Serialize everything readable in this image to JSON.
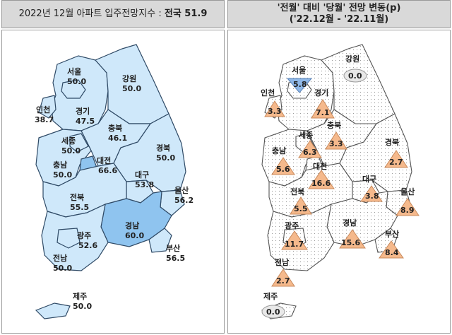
{
  "header_left": {
    "prefix": "2022년 12월 아파트 입주전망지수 :",
    "national": "전국 51.9"
  },
  "header_right": {
    "line1": "'전월' 대비 '당월' 전망 변동(p)",
    "line2": "('22.12월 - '22.11월)"
  },
  "colors": {
    "region_fill": "#cfe8fa",
    "region_highlight": "#8fc4ef",
    "region_stroke": "#2f4a66",
    "up_triangle": "#f5b98c",
    "down_triangle": "#8fb8e8",
    "zero_fill": "#e8e8e8"
  },
  "left_regions": [
    {
      "name": "서울",
      "value": "50.0"
    },
    {
      "name": "인천",
      "value": "38.7"
    },
    {
      "name": "경기",
      "value": "47.5"
    },
    {
      "name": "강원",
      "value": "50.0"
    },
    {
      "name": "세종",
      "value": "50.0"
    },
    {
      "name": "충북",
      "value": "46.1"
    },
    {
      "name": "충남",
      "value": "50.0"
    },
    {
      "name": "대전",
      "value": "66.6"
    },
    {
      "name": "경북",
      "value": "50.0"
    },
    {
      "name": "대구",
      "value": "53.8"
    },
    {
      "name": "전북",
      "value": "55.5"
    },
    {
      "name": "울산",
      "value": "56.2"
    },
    {
      "name": "경남",
      "value": "60.0"
    },
    {
      "name": "광주",
      "value": "52.6"
    },
    {
      "name": "부산",
      "value": "56.5"
    },
    {
      "name": "전남",
      "value": "50.0"
    },
    {
      "name": "제주",
      "value": "50.0"
    }
  ],
  "right_regions": [
    {
      "name": "강원",
      "value": "0.0",
      "trend": "zero"
    },
    {
      "name": "서울",
      "value": "5.8",
      "trend": "down"
    },
    {
      "name": "인천",
      "value": "3.3",
      "trend": "up"
    },
    {
      "name": "경기",
      "value": "7.1",
      "trend": "up"
    },
    {
      "name": "충북",
      "value": "3.3",
      "trend": "up"
    },
    {
      "name": "세종",
      "value": "6.3",
      "trend": "up"
    },
    {
      "name": "경북",
      "value": "2.7",
      "trend": "up"
    },
    {
      "name": "충남",
      "value": "5.6",
      "trend": "up"
    },
    {
      "name": "대전",
      "value": "16.6",
      "trend": "up"
    },
    {
      "name": "대구",
      "value": "3.8",
      "trend": "up"
    },
    {
      "name": "전북",
      "value": "5.5",
      "trend": "up"
    },
    {
      "name": "울산",
      "value": "8.9",
      "trend": "up"
    },
    {
      "name": "광주",
      "value": "11.7",
      "trend": "up"
    },
    {
      "name": "경남",
      "value": "15.6",
      "trend": "up"
    },
    {
      "name": "부산",
      "value": "8.4",
      "trend": "up"
    },
    {
      "name": "전남",
      "value": "2.7",
      "trend": "up"
    },
    {
      "name": "제주",
      "value": "0.0",
      "trend": "zero"
    }
  ]
}
